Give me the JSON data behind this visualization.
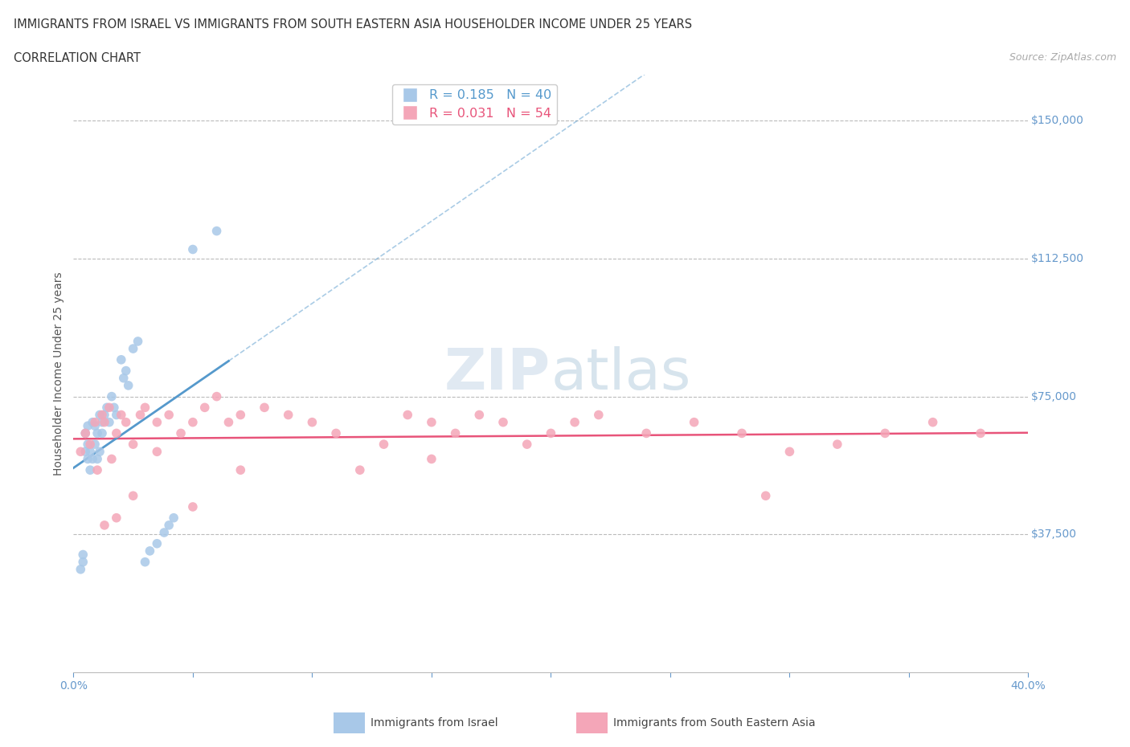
{
  "title_line1": "IMMIGRANTS FROM ISRAEL VS IMMIGRANTS FROM SOUTH EASTERN ASIA HOUSEHOLDER INCOME UNDER 25 YEARS",
  "title_line2": "CORRELATION CHART",
  "source_text": "Source: ZipAtlas.com",
  "ylabel": "Householder Income Under 25 years",
  "xlim": [
    0.0,
    0.4
  ],
  "ylim": [
    0,
    162500
  ],
  "xticks": [
    0.0,
    0.05,
    0.1,
    0.15,
    0.2,
    0.25,
    0.3,
    0.35,
    0.4
  ],
  "yticks": [
    0,
    37500,
    75000,
    112500,
    150000
  ],
  "ytick_labels": [
    "",
    "$37,500",
    "$75,000",
    "$112,500",
    "$150,000"
  ],
  "israel_color": "#A8C8E8",
  "sea_color": "#F4A6B8",
  "trendline_color_israel": "#5599CC",
  "trendline_color_sea": "#E8547A",
  "R_israel": 0.185,
  "N_israel": 40,
  "R_sea": 0.031,
  "N_sea": 54,
  "legend_label_israel": "Immigrants from Israel",
  "legend_label_sea": "Immigrants from South Eastern Asia",
  "watermark": "ZIPatlas",
  "background_color": "#FFFFFF",
  "grid_color": "#BBBBBB",
  "israel_x": [
    0.003,
    0.004,
    0.004,
    0.005,
    0.005,
    0.006,
    0.006,
    0.006,
    0.007,
    0.007,
    0.008,
    0.008,
    0.009,
    0.009,
    0.01,
    0.01,
    0.011,
    0.011,
    0.012,
    0.012,
    0.013,
    0.014,
    0.015,
    0.016,
    0.017,
    0.018,
    0.02,
    0.021,
    0.022,
    0.023,
    0.025,
    0.027,
    0.03,
    0.032,
    0.035,
    0.038,
    0.04,
    0.042,
    0.05,
    0.06
  ],
  "israel_y": [
    28000,
    30000,
    32000,
    60000,
    65000,
    58000,
    62000,
    67000,
    55000,
    60000,
    58000,
    68000,
    62000,
    67000,
    58000,
    65000,
    60000,
    70000,
    65000,
    68000,
    70000,
    72000,
    68000,
    75000,
    72000,
    70000,
    85000,
    80000,
    82000,
    78000,
    88000,
    90000,
    30000,
    33000,
    35000,
    38000,
    40000,
    42000,
    115000,
    120000
  ],
  "sea_x": [
    0.003,
    0.005,
    0.007,
    0.009,
    0.01,
    0.012,
    0.013,
    0.015,
    0.016,
    0.018,
    0.02,
    0.022,
    0.025,
    0.028,
    0.03,
    0.035,
    0.04,
    0.045,
    0.05,
    0.055,
    0.06,
    0.065,
    0.07,
    0.08,
    0.09,
    0.1,
    0.11,
    0.12,
    0.13,
    0.14,
    0.15,
    0.16,
    0.17,
    0.18,
    0.19,
    0.2,
    0.21,
    0.22,
    0.24,
    0.26,
    0.28,
    0.3,
    0.32,
    0.34,
    0.36,
    0.38,
    0.013,
    0.018,
    0.025,
    0.035,
    0.05,
    0.07,
    0.15,
    0.29
  ],
  "sea_y": [
    60000,
    65000,
    62000,
    68000,
    55000,
    70000,
    68000,
    72000,
    58000,
    65000,
    70000,
    68000,
    62000,
    70000,
    72000,
    68000,
    70000,
    65000,
    68000,
    72000,
    75000,
    68000,
    70000,
    72000,
    70000,
    68000,
    65000,
    55000,
    62000,
    70000,
    68000,
    65000,
    70000,
    68000,
    62000,
    65000,
    68000,
    70000,
    65000,
    68000,
    65000,
    60000,
    62000,
    65000,
    68000,
    65000,
    40000,
    42000,
    48000,
    60000,
    45000,
    55000,
    58000,
    48000
  ]
}
